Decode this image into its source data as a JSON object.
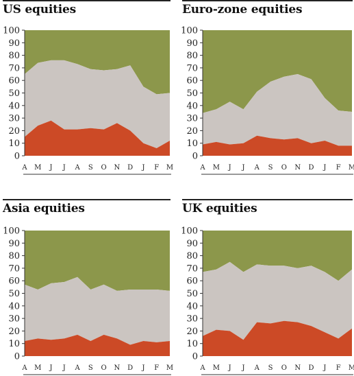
{
  "colors": {
    "red": "#cc4a26",
    "grey": "#cbc5c1",
    "olive": "#8c974b"
  },
  "chart_data": [
    {
      "type": "area",
      "title": "US equities",
      "categories": [
        "A",
        "M",
        "J",
        "J",
        "A",
        "S",
        "O",
        "N",
        "D",
        "J",
        "F",
        "M"
      ],
      "ylim": [
        0,
        100
      ],
      "yticks": [
        0,
        10,
        20,
        30,
        40,
        50,
        60,
        70,
        80,
        90,
        100
      ],
      "stacked_boundaries": [
        [
          15,
          24,
          28,
          21,
          21,
          22,
          21,
          26,
          20,
          10,
          6,
          12
        ],
        [
          65,
          74,
          76,
          76,
          73,
          69,
          68,
          69,
          72,
          55,
          49,
          50
        ]
      ]
    },
    {
      "type": "area",
      "title": "Euro-zone equities",
      "categories": [
        "A",
        "M",
        "J",
        "J",
        "A",
        "S",
        "O",
        "N",
        "D",
        "J",
        "F",
        "M"
      ],
      "ylim": [
        0,
        100
      ],
      "yticks": [
        0,
        10,
        20,
        30,
        40,
        50,
        60,
        70,
        80,
        90,
        100
      ],
      "stacked_boundaries": [
        [
          9,
          11,
          9,
          10,
          16,
          14,
          13,
          14,
          10,
          12,
          8,
          8
        ],
        [
          34,
          37,
          43,
          37,
          51,
          59,
          63,
          65,
          61,
          46,
          36,
          35
        ]
      ]
    },
    {
      "type": "area",
      "title": "Asia equities",
      "categories": [
        "A",
        "M",
        "J",
        "J",
        "A",
        "S",
        "O",
        "N",
        "D",
        "J",
        "F",
        "M"
      ],
      "ylim": [
        0,
        100
      ],
      "yticks": [
        0,
        10,
        20,
        30,
        40,
        50,
        60,
        70,
        80,
        90,
        100
      ],
      "stacked_boundaries": [
        [
          12,
          14,
          13,
          14,
          17,
          12,
          17,
          14,
          9,
          12,
          11,
          12
        ],
        [
          57,
          53,
          58,
          59,
          63,
          53,
          57,
          52,
          53,
          53,
          53,
          52
        ]
      ]
    },
    {
      "type": "area",
      "title": "UK equities",
      "categories": [
        "A",
        "M",
        "J",
        "J",
        "A",
        "S",
        "O",
        "N",
        "D",
        "J",
        "F",
        "M"
      ],
      "ylim": [
        0,
        100
      ],
      "yticks": [
        0,
        10,
        20,
        30,
        40,
        50,
        60,
        70,
        80,
        90,
        100
      ],
      "stacked_boundaries": [
        [
          16,
          21,
          20,
          13,
          27,
          26,
          28,
          27,
          24,
          19,
          14,
          22
        ],
        [
          67,
          69,
          75,
          67,
          73,
          72,
          72,
          70,
          72,
          67,
          60,
          69
        ]
      ]
    }
  ]
}
